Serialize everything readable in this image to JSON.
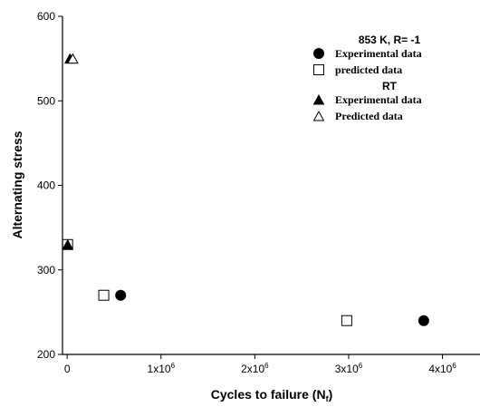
{
  "chart_data": {
    "type": "scatter",
    "xlabel": "Cycles to failure (N",
    "xlabel_sub": "f",
    "xlabel_end": ")",
    "ylabel": "Alternating stress",
    "xlim": [
      -50000,
      4400000
    ],
    "ylim": [
      200,
      600
    ],
    "x_ticks": [
      {
        "value": 0,
        "mant": "0",
        "exp": ""
      },
      {
        "value": 1000000,
        "mant": "1x10",
        "exp": "6"
      },
      {
        "value": 2000000,
        "mant": "2x10",
        "exp": "6"
      },
      {
        "value": 3000000,
        "mant": "3x10",
        "exp": "6"
      },
      {
        "value": 4000000,
        "mant": "4x10",
        "exp": "6"
      }
    ],
    "y_ticks": [
      200,
      300,
      400,
      500,
      600
    ],
    "legend_groups": [
      {
        "title": "853 K, R= -1",
        "series_idx": [
          0,
          1
        ]
      },
      {
        "title": "RT",
        "series_idx": [
          2,
          3
        ]
      }
    ],
    "series": [
      {
        "name": "Experimental data",
        "marker": "circle",
        "filled": true,
        "points": [
          {
            "x": 570000,
            "y": 270
          },
          {
            "x": 3800000,
            "y": 240
          }
        ]
      },
      {
        "name": "predicted data",
        "marker": "square",
        "filled": false,
        "points": [
          {
            "x": 5000,
            "y": 330
          },
          {
            "x": 390000,
            "y": 270
          },
          {
            "x": 2980000,
            "y": 240
          }
        ]
      },
      {
        "name": "Experimental data",
        "marker": "triangle",
        "filled": true,
        "points": [
          {
            "x": 5000,
            "y": 330
          },
          {
            "x": 30000,
            "y": 550
          }
        ]
      },
      {
        "name": "Predicted data",
        "marker": "triangle",
        "filled": false,
        "points": [
          {
            "x": 60000,
            "y": 550
          }
        ]
      }
    ]
  }
}
